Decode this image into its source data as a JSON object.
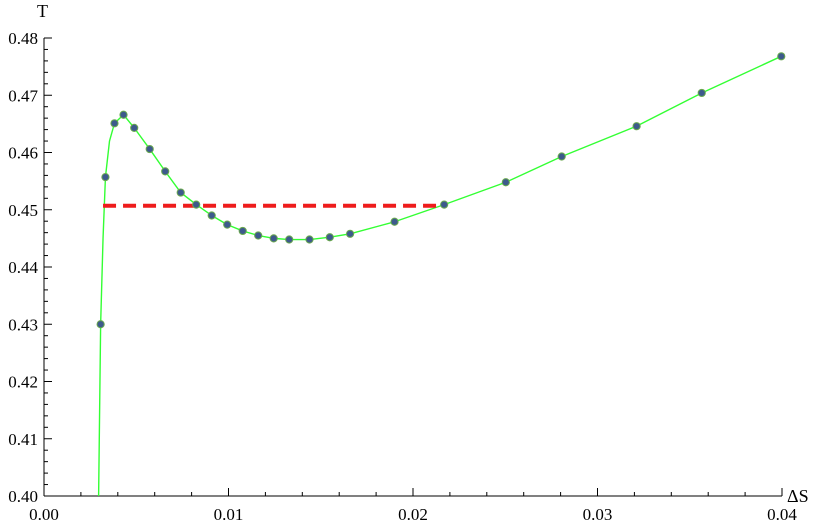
{
  "chart_data": {
    "type": "scatter",
    "xlabel": "ΔS",
    "ylabel": "T",
    "xlim": [
      0.0,
      0.04
    ],
    "ylim": [
      0.4,
      0.48
    ],
    "x_ticks": [
      "0.00",
      "0.01",
      "0.02",
      "0.03",
      "0.04"
    ],
    "y_ticks": [
      "0.40",
      "0.41",
      "0.42",
      "0.43",
      "0.44",
      "0.45",
      "0.46",
      "0.47",
      "0.48"
    ],
    "grid": false,
    "series": [
      {
        "kind": "points",
        "marker_color": "#3d5a8c",
        "marker_edge_color": "#6aa84f",
        "x": [
          0.00307,
          0.00333,
          0.00382,
          0.00431,
          0.00489,
          0.00573,
          0.00657,
          0.00741,
          0.00825,
          0.00909,
          0.00993,
          0.01077,
          0.01161,
          0.01245,
          0.01329,
          0.01439,
          0.01549,
          0.01659,
          0.019,
          0.02169,
          0.02503,
          0.02806,
          0.03212,
          0.03565,
          0.03996
        ],
        "y": [
          0.43,
          0.4557,
          0.4651,
          0.4666,
          0.4643,
          0.4606,
          0.4567,
          0.453,
          0.4509,
          0.449,
          0.4474,
          0.4463,
          0.4455,
          0.445,
          0.4448,
          0.4448,
          0.4452,
          0.4458,
          0.4479,
          0.4509,
          0.4548,
          0.4593,
          0.4646,
          0.4704,
          0.4768
        ]
      },
      {
        "kind": "curve",
        "color": "#33ff33",
        "x": [
          0.00296,
          0.00307,
          0.0032,
          0.00333,
          0.00355,
          0.00382,
          0.00431,
          0.00489,
          0.00573,
          0.00657,
          0.00741,
          0.00825,
          0.00909,
          0.00993,
          0.01077,
          0.01161,
          0.01245,
          0.01329,
          0.01439,
          0.01549,
          0.01659,
          0.019,
          0.02169,
          0.02503,
          0.02806,
          0.03212,
          0.03565,
          0.03996
        ],
        "y": [
          0.4,
          0.43,
          0.445,
          0.4557,
          0.462,
          0.4651,
          0.4666,
          0.4643,
          0.4606,
          0.4567,
          0.453,
          0.4509,
          0.449,
          0.4474,
          0.4463,
          0.4455,
          0.445,
          0.4448,
          0.4448,
          0.4452,
          0.4458,
          0.4479,
          0.4509,
          0.4548,
          0.4593,
          0.4646,
          0.4704,
          0.4768
        ]
      },
      {
        "kind": "dashed-line",
        "color": "#ee1c1c",
        "x": [
          0.0032,
          0.02169
        ],
        "y": [
          0.4507,
          0.4507
        ]
      }
    ]
  }
}
